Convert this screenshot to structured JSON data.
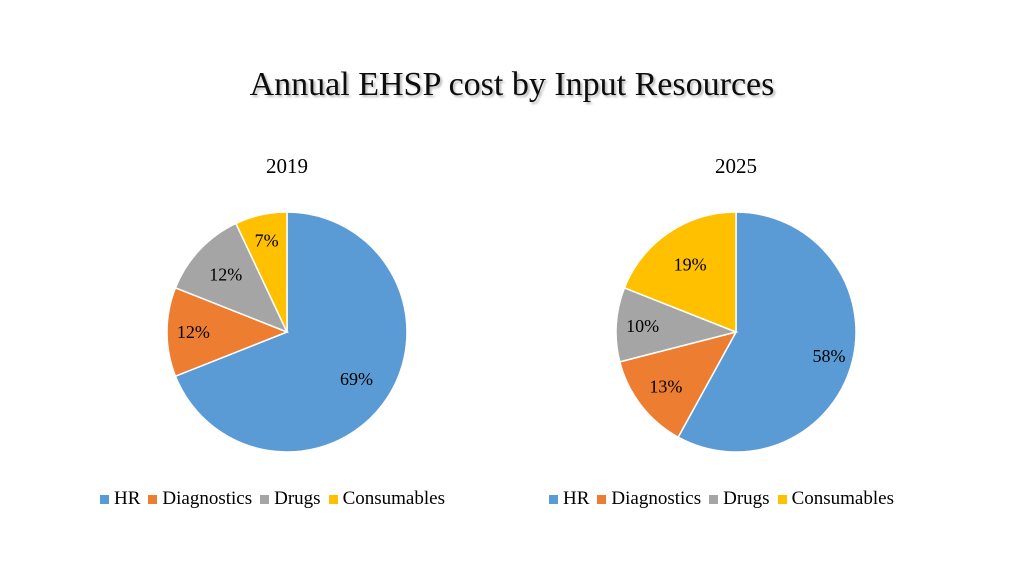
{
  "title": "Annual EHSP cost by Input Resources",
  "chart_data": [
    {
      "type": "pie",
      "title": "2019",
      "categories": [
        "HR",
        "Diagnostics",
        "Drugs",
        "Consumables"
      ],
      "values": [
        69,
        12,
        12,
        7
      ],
      "labels": [
        "69%",
        "12%",
        "12%",
        "7%"
      ],
      "colors": [
        "#5B9BD5",
        "#ED7D31",
        "#A5A5A5",
        "#FFC000"
      ],
      "legend": "bottom"
    },
    {
      "type": "pie",
      "title": "2025",
      "categories": [
        "HR",
        "Diagnostics",
        "Drugs",
        "Consumables"
      ],
      "values": [
        58,
        13,
        10,
        19
      ],
      "labels": [
        "58%",
        "13%",
        "10%",
        "19%"
      ],
      "colors": [
        "#5B9BD5",
        "#ED7D31",
        "#A5A5A5",
        "#FFC000"
      ],
      "legend": "bottom"
    }
  ]
}
